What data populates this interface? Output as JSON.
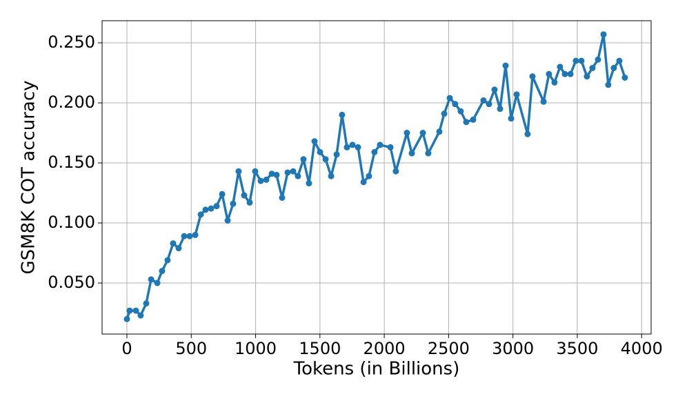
{
  "chart_data": {
    "type": "line",
    "xlabel": "Tokens (in Billions)",
    "ylabel": "GSM8K COT accuracy",
    "series": [
      {
        "name": "GSM8K COT accuracy",
        "color": "#1f77b4",
        "x": [
          0,
          21,
          70,
          107,
          150,
          188,
          236,
          273,
          316,
          359,
          402,
          445,
          488,
          531,
          574,
          611,
          654,
          697,
          740,
          783,
          825,
          868,
          911,
          954,
          997,
          1040,
          1083,
          1126,
          1163,
          1206,
          1249,
          1292,
          1329,
          1372,
          1415,
          1458,
          1501,
          1544,
          1587,
          1630,
          1672,
          1710,
          1753,
          1796,
          1839,
          1881,
          1924,
          1967,
          2048,
          2090,
          2176,
          2214,
          2300,
          2342,
          2428,
          2466,
          2509,
          2551,
          2594,
          2637,
          2691,
          2771,
          2814,
          2857,
          2900,
          2943,
          2986,
          3029,
          3114,
          3152,
          3238,
          3280,
          3323,
          3366,
          3404,
          3447,
          3489,
          3532,
          3575,
          3618,
          3661,
          3704,
          3741,
          3784,
          3827,
          3870
        ],
        "values": [
          0.02,
          0.027,
          0.027,
          0.023,
          0.033,
          0.053,
          0.05,
          0.06,
          0.069,
          0.083,
          0.079,
          0.089,
          0.089,
          0.09,
          0.107,
          0.111,
          0.112,
          0.114,
          0.124,
          0.102,
          0.116,
          0.143,
          0.123,
          0.117,
          0.143,
          0.135,
          0.136,
          0.141,
          0.14,
          0.121,
          0.142,
          0.143,
          0.139,
          0.153,
          0.133,
          0.168,
          0.159,
          0.153,
          0.139,
          0.157,
          0.19,
          0.163,
          0.165,
          0.163,
          0.134,
          0.139,
          0.159,
          0.165,
          0.163,
          0.143,
          0.175,
          0.158,
          0.175,
          0.158,
          0.176,
          0.191,
          0.204,
          0.199,
          0.193,
          0.184,
          0.186,
          0.202,
          0.199,
          0.211,
          0.195,
          0.231,
          0.187,
          0.207,
          0.174,
          0.222,
          0.201,
          0.224,
          0.217,
          0.23,
          0.224,
          0.224,
          0.235,
          0.235,
          0.222,
          0.229,
          0.236,
          0.257,
          0.215,
          0.229,
          0.235,
          0.221
        ]
      }
    ],
    "xlim": [
      -193,
      4074
    ],
    "xticks": [
      0,
      500,
      1000,
      1500,
      2000,
      2500,
      3000,
      3500,
      4000
    ],
    "ylim": [
      0.0075,
      0.2684
    ],
    "yticks": [
      {
        "value": 0.05,
        "label": "0.050"
      },
      {
        "value": 0.1,
        "label": "0.100"
      },
      {
        "value": 0.15,
        "label": "0.150"
      },
      {
        "value": 0.2,
        "label": "0.200"
      },
      {
        "value": 0.25,
        "label": "0.250"
      }
    ],
    "grid": true
  }
}
